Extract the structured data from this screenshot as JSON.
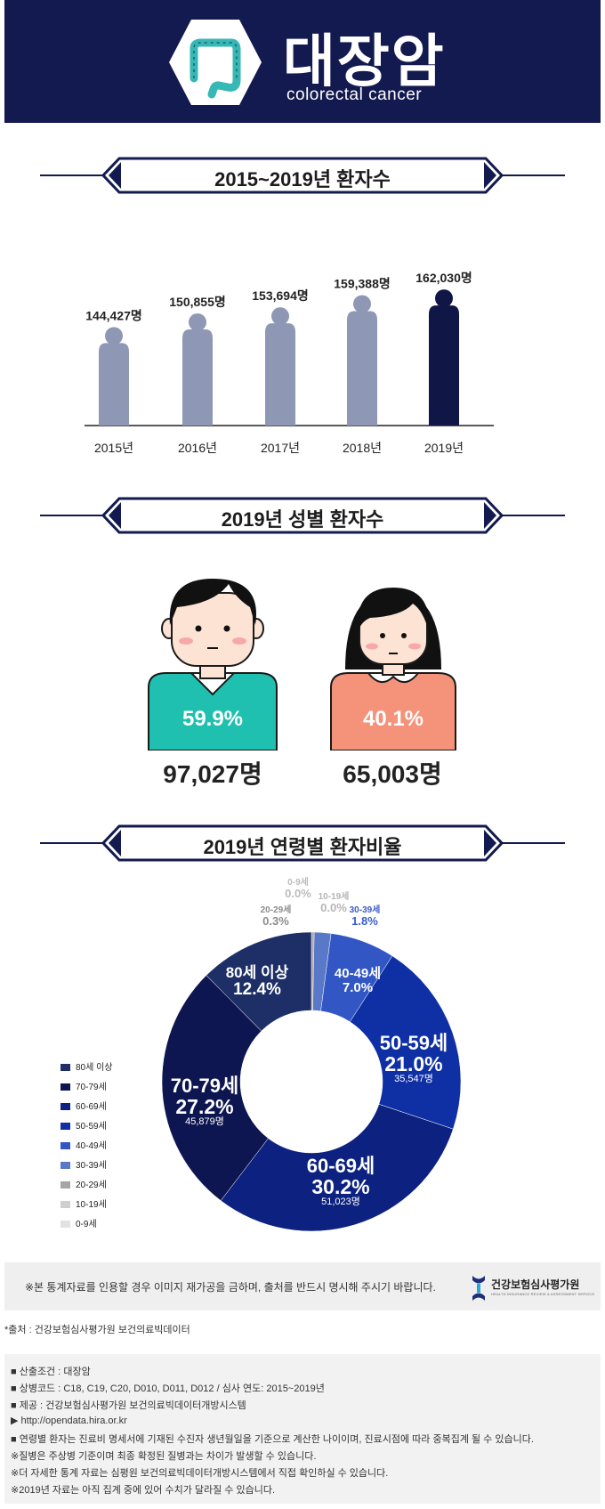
{
  "header": {
    "title_ko": "대장암",
    "title_en": "colorectal cancer"
  },
  "sections": {
    "yearly_title": "2015~2019년 환자수",
    "gender_title": "2019년 성별 환자수",
    "age_title": "2019년 연령별 환자비율"
  },
  "colors": {
    "navy": "#131a4f",
    "figure_gray": "#8e98b4",
    "figure_highlight": "#101646",
    "male_shirt": "#1fc0b0",
    "female_shirt": "#f4927a"
  },
  "chart_data": [
    {
      "type": "bar",
      "title": "2015~2019년 환자수",
      "categories": [
        "2015년",
        "2016년",
        "2017년",
        "2018년",
        "2019년"
      ],
      "values": [
        144427,
        150855,
        153694,
        159388,
        162030
      ],
      "value_labels": [
        "144,427명",
        "150,855명",
        "153,694명",
        "159,388명",
        "162,030명"
      ],
      "highlight": "2019년"
    },
    {
      "type": "bar",
      "title": "2019년 성별 환자수",
      "categories": [
        "male",
        "female"
      ],
      "values": [
        97027,
        65003
      ],
      "value_labels": [
        "97,027명",
        "65,003명"
      ],
      "percent_labels": [
        "59.9%",
        "40.1%"
      ]
    },
    {
      "type": "pie",
      "title": "2019년 연령별 환자비율",
      "donut": true,
      "legend_position": "left",
      "slices": [
        {
          "label": "0-9세",
          "value": 0.0,
          "pct": "0.0%",
          "color": "#e2e2e2"
        },
        {
          "label": "10-19세",
          "value": 0.0,
          "pct": "0.0%",
          "color": "#cfcfcf"
        },
        {
          "label": "20-29세",
          "value": 0.3,
          "pct": "0.3%",
          "color": "#a5a5a5"
        },
        {
          "label": "30-39세",
          "value": 1.8,
          "pct": "1.8%",
          "color": "#5a78c8"
        },
        {
          "label": "40-49세",
          "value": 7.0,
          "pct": "7.0%",
          "color": "#3256c4"
        },
        {
          "label": "50-59세",
          "value": 21.0,
          "pct": "21.0%",
          "count": "35,547명",
          "color": "#0f2fa5"
        },
        {
          "label": "60-69세",
          "value": 30.2,
          "pct": "30.2%",
          "count": "51,023명",
          "color": "#0c2180"
        },
        {
          "label": "70-79세",
          "value": 27.2,
          "pct": "27.2%",
          "count": "45,879명",
          "color": "#0d1650"
        },
        {
          "label": "80세 이상",
          "value": 12.4,
          "pct": "12.4%",
          "color": "#1d2f66"
        }
      ],
      "legend": [
        "80세 이상",
        "70-79세",
        "60-69세",
        "50-59세",
        "40-49세",
        "30-39세",
        "20-29세",
        "10-19세",
        "0-9세"
      ]
    }
  ],
  "notice": "※본 통계자료를 인용할 경우 이미지 재가공을 금하며, 출처를 반드시 명시해 주시기 바랍니다.",
  "org": {
    "name": "건강보험심사평가원",
    "sub": "HEALTH INSURANCE REVIEW & ASSESSMENT SERVICE"
  },
  "source": "*출처 : 건강보험심사평가원 보건의료빅데이터",
  "info_lines": [
    "■ 산출조건 : 대장암",
    "■ 상병코드 : C18, C19, C20, D010, D011, D012 / 심사 연도: 2015~2019년",
    "■ 제공 : 건강보험심사평가원 보건의료빅데이터개방시스템",
    "▶ http://opendata.hira.or.kr",
    "■ 연령별 환자는 진료비 명세서에 기재된 수진자 생년월일을 기준으로 계산한 나이이며, 진료시점에 따라 중복집계 될 수 있습니다.",
    "※질병은 주상병 기준이며 최종 확정된 질병과는 차이가 발생할 수 있습니다.",
    "※더 자세한 통계 자료는 심평원 보건의료빅데이터개방시스템에서 직접 확인하실 수 있습니다.",
    "※2019년 자료는 아직 집계 중에 있어 수치가 달라질 수 있습니다."
  ]
}
